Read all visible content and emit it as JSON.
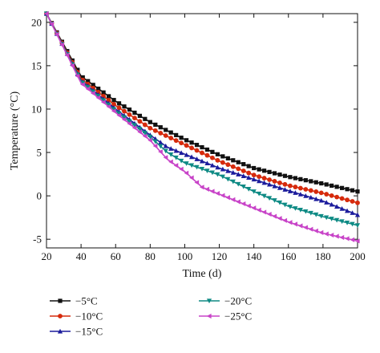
{
  "chart_data": {
    "type": "line",
    "xlabel": "Time (d)",
    "ylabel": "Temperature (°C)",
    "xlim": [
      20,
      200
    ],
    "ylim": [
      -6,
      21
    ],
    "xticks": [
      20,
      40,
      60,
      80,
      100,
      120,
      140,
      160,
      180,
      200
    ],
    "yticks": [
      -5,
      0,
      5,
      10,
      15,
      20
    ],
    "grid": false,
    "legend_position": "bottom",
    "series": [
      {
        "name": "−5°C",
        "color": "#111111",
        "marker": "square",
        "x": [
          20,
          40,
          60,
          80,
          100,
          120,
          140,
          160,
          180,
          200
        ],
        "y": [
          21.0,
          13.8,
          10.9,
          8.5,
          6.5,
          4.7,
          3.2,
          2.2,
          1.4,
          0.5
        ]
      },
      {
        "name": "−10°C",
        "color": "#d62a0c",
        "marker": "circle",
        "x": [
          20,
          40,
          60,
          80,
          100,
          120,
          140,
          160,
          180,
          200
        ],
        "y": [
          21.0,
          13.5,
          10.4,
          7.8,
          5.9,
          4.0,
          2.4,
          1.2,
          0.3,
          -0.8
        ]
      },
      {
        "name": "−15°C",
        "color": "#1c1c9c",
        "marker": "triangle-up",
        "x": [
          20,
          40,
          60,
          80,
          90,
          100,
          120,
          140,
          160,
          180,
          200
        ],
        "y": [
          21.0,
          13.3,
          10.0,
          7.0,
          5.6,
          4.8,
          3.2,
          1.9,
          0.6,
          -0.6,
          -2.2
        ]
      },
      {
        "name": "−20°C",
        "color": "#0e8a84",
        "marker": "triangle-down",
        "x": [
          20,
          40,
          60,
          80,
          90,
          100,
          120,
          140,
          160,
          180,
          200
        ],
        "y": [
          21.0,
          13.2,
          9.8,
          6.8,
          5.0,
          3.8,
          2.4,
          0.5,
          -1.2,
          -2.4,
          -3.4
        ]
      },
      {
        "name": "−25°C",
        "color": "#c844c8",
        "marker": "triangle-left",
        "x": [
          20,
          40,
          60,
          80,
          90,
          100,
          110,
          120,
          140,
          160,
          180,
          200
        ],
        "y": [
          21.0,
          13.0,
          9.6,
          6.4,
          4.2,
          2.8,
          1.0,
          0.2,
          -1.4,
          -3.0,
          -4.3,
          -5.2
        ]
      }
    ]
  }
}
